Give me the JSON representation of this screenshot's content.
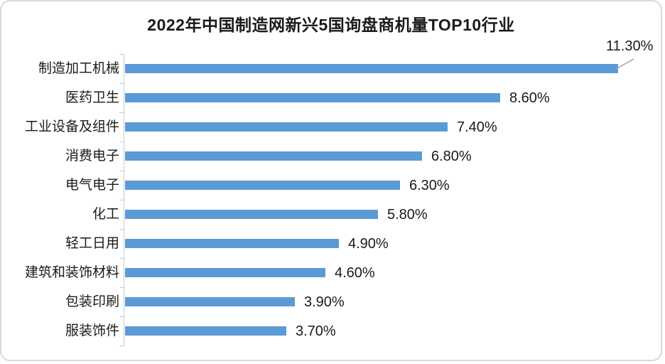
{
  "chart": {
    "title": "2022年中国制造网新兴5国询盘商机量TOP10行业"
  },
  "chart_data": {
    "type": "bar",
    "orientation": "horizontal",
    "title": "2022年中国制造网新兴5国询盘商机量TOP10行业",
    "xlabel": "",
    "ylabel": "",
    "categories": [
      "制造加工机械",
      "医药卫生",
      "工业设备及组件",
      "消费电子",
      "电气电子",
      "化工",
      "轻工日用",
      "建筑和装饰材料",
      "包装印刷",
      "服装饰件"
    ],
    "values": [
      11.3,
      8.6,
      7.4,
      6.8,
      6.3,
      5.8,
      4.9,
      4.6,
      3.9,
      3.7
    ],
    "value_labels": [
      "11.30%",
      "8.60%",
      "7.40%",
      "6.80%",
      "6.30%",
      "5.80%",
      "4.90%",
      "4.60%",
      "3.90%",
      "3.70%"
    ],
    "xlim": [
      0,
      11.3
    ],
    "grid": false,
    "legend": false,
    "callout_index": 0,
    "colors": {
      "bar": "#5B9BD5",
      "axis": "#C9C9C9",
      "frame_border": "#D9D9D9",
      "text": "#1A1A1A",
      "leader": "#A6A6A6"
    }
  }
}
